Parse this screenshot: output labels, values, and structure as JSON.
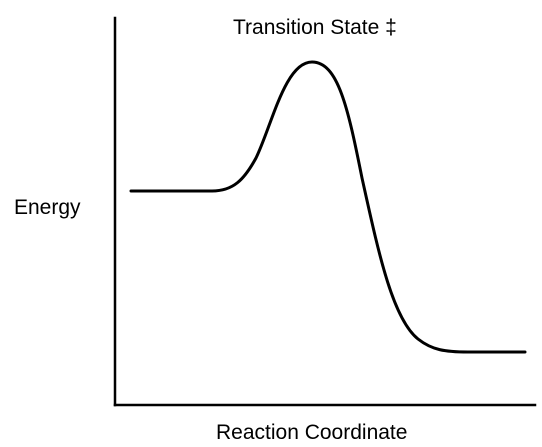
{
  "diagram": {
    "type": "energy-profile",
    "peak_label": "Transition State ‡",
    "ylabel": "Energy",
    "xlabel": "Reaction Coordinate",
    "colors": {
      "axis": "#000000",
      "curve": "#000000",
      "text": "#000000",
      "background": "#ffffff"
    }
  }
}
